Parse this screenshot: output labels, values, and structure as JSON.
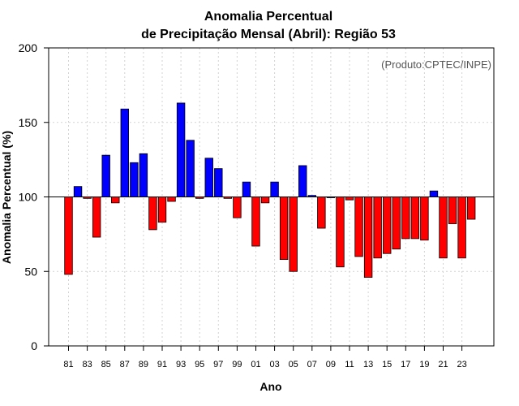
{
  "chart_data": {
    "type": "bar",
    "title": "Anomalia Percentual",
    "subtitle": "de Precipitação Mensal (Abril): Região 53",
    "xlabel": "Ano",
    "ylabel": "Anomalia Percentual (%)",
    "credit": "(Produto:CPTEC/INPE)",
    "ylim": [
      0,
      200
    ],
    "yticks": [
      0,
      50,
      100,
      150,
      200
    ],
    "baseline": 100,
    "grid": true,
    "colors": {
      "above": "#0000ff",
      "below": "#ff0000",
      "outline": "#000000",
      "grid": "#d3d3d3"
    },
    "categories": [
      "81",
      "82",
      "83",
      "84",
      "85",
      "86",
      "87",
      "88",
      "89",
      "90",
      "91",
      "92",
      "93",
      "94",
      "95",
      "96",
      "97",
      "98",
      "99",
      "00",
      "01",
      "02",
      "03",
      "04",
      "05",
      "06",
      "07",
      "08",
      "09",
      "10",
      "11",
      "12",
      "13",
      "14",
      "15",
      "16",
      "17",
      "18",
      "19",
      "20",
      "21",
      "22",
      "23",
      "24"
    ],
    "tick_labels": [
      "81",
      "83",
      "85",
      "87",
      "89",
      "91",
      "93",
      "95",
      "97",
      "99",
      "01",
      "03",
      "05",
      "07",
      "09",
      "11",
      "13",
      "15",
      "17",
      "19",
      "21",
      "23"
    ],
    "values": [
      48,
      107,
      99,
      73,
      128,
      96,
      159,
      123,
      129,
      78,
      83,
      97,
      163,
      138,
      99,
      126,
      119,
      99,
      86,
      110,
      67,
      96,
      110,
      58,
      50,
      121,
      101,
      79,
      100,
      53,
      98,
      60,
      46,
      59,
      62,
      65,
      72,
      72,
      71,
      104,
      59,
      82,
      59,
      85
    ]
  }
}
